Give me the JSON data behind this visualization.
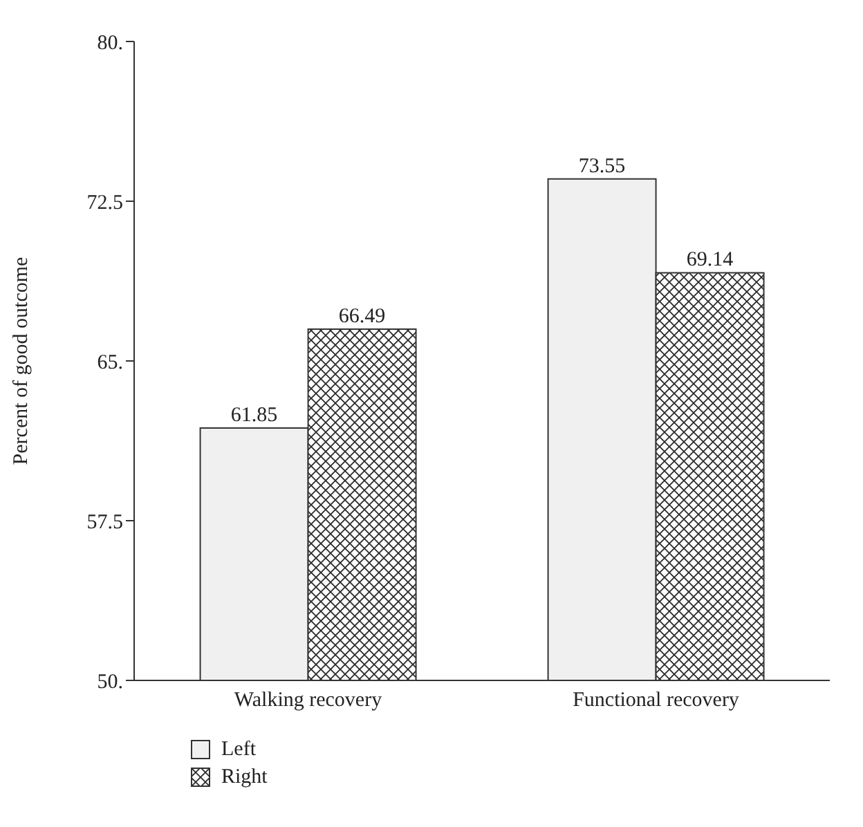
{
  "chart_data": {
    "type": "bar",
    "ylabel": "Percent of good outcome",
    "categories": [
      "Walking recovery",
      "Functional recovery"
    ],
    "series": [
      {
        "name": "Left",
        "color": "#f0f0f0",
        "values": [
          61.85,
          73.55
        ]
      },
      {
        "name": "Right",
        "color": "#2b2b2b",
        "values": [
          66.49,
          69.14
        ]
      }
    ],
    "ylim": [
      50,
      80
    ],
    "yticks": [
      {
        "value": 50,
        "label": "50."
      },
      {
        "value": 57.5,
        "label": "57.5"
      },
      {
        "value": 65,
        "label": "65."
      },
      {
        "value": 72.5,
        "label": "72.5"
      },
      {
        "value": 80,
        "label": "80."
      }
    ],
    "data_labels": true,
    "grid": false,
    "legend": "bottom left"
  }
}
